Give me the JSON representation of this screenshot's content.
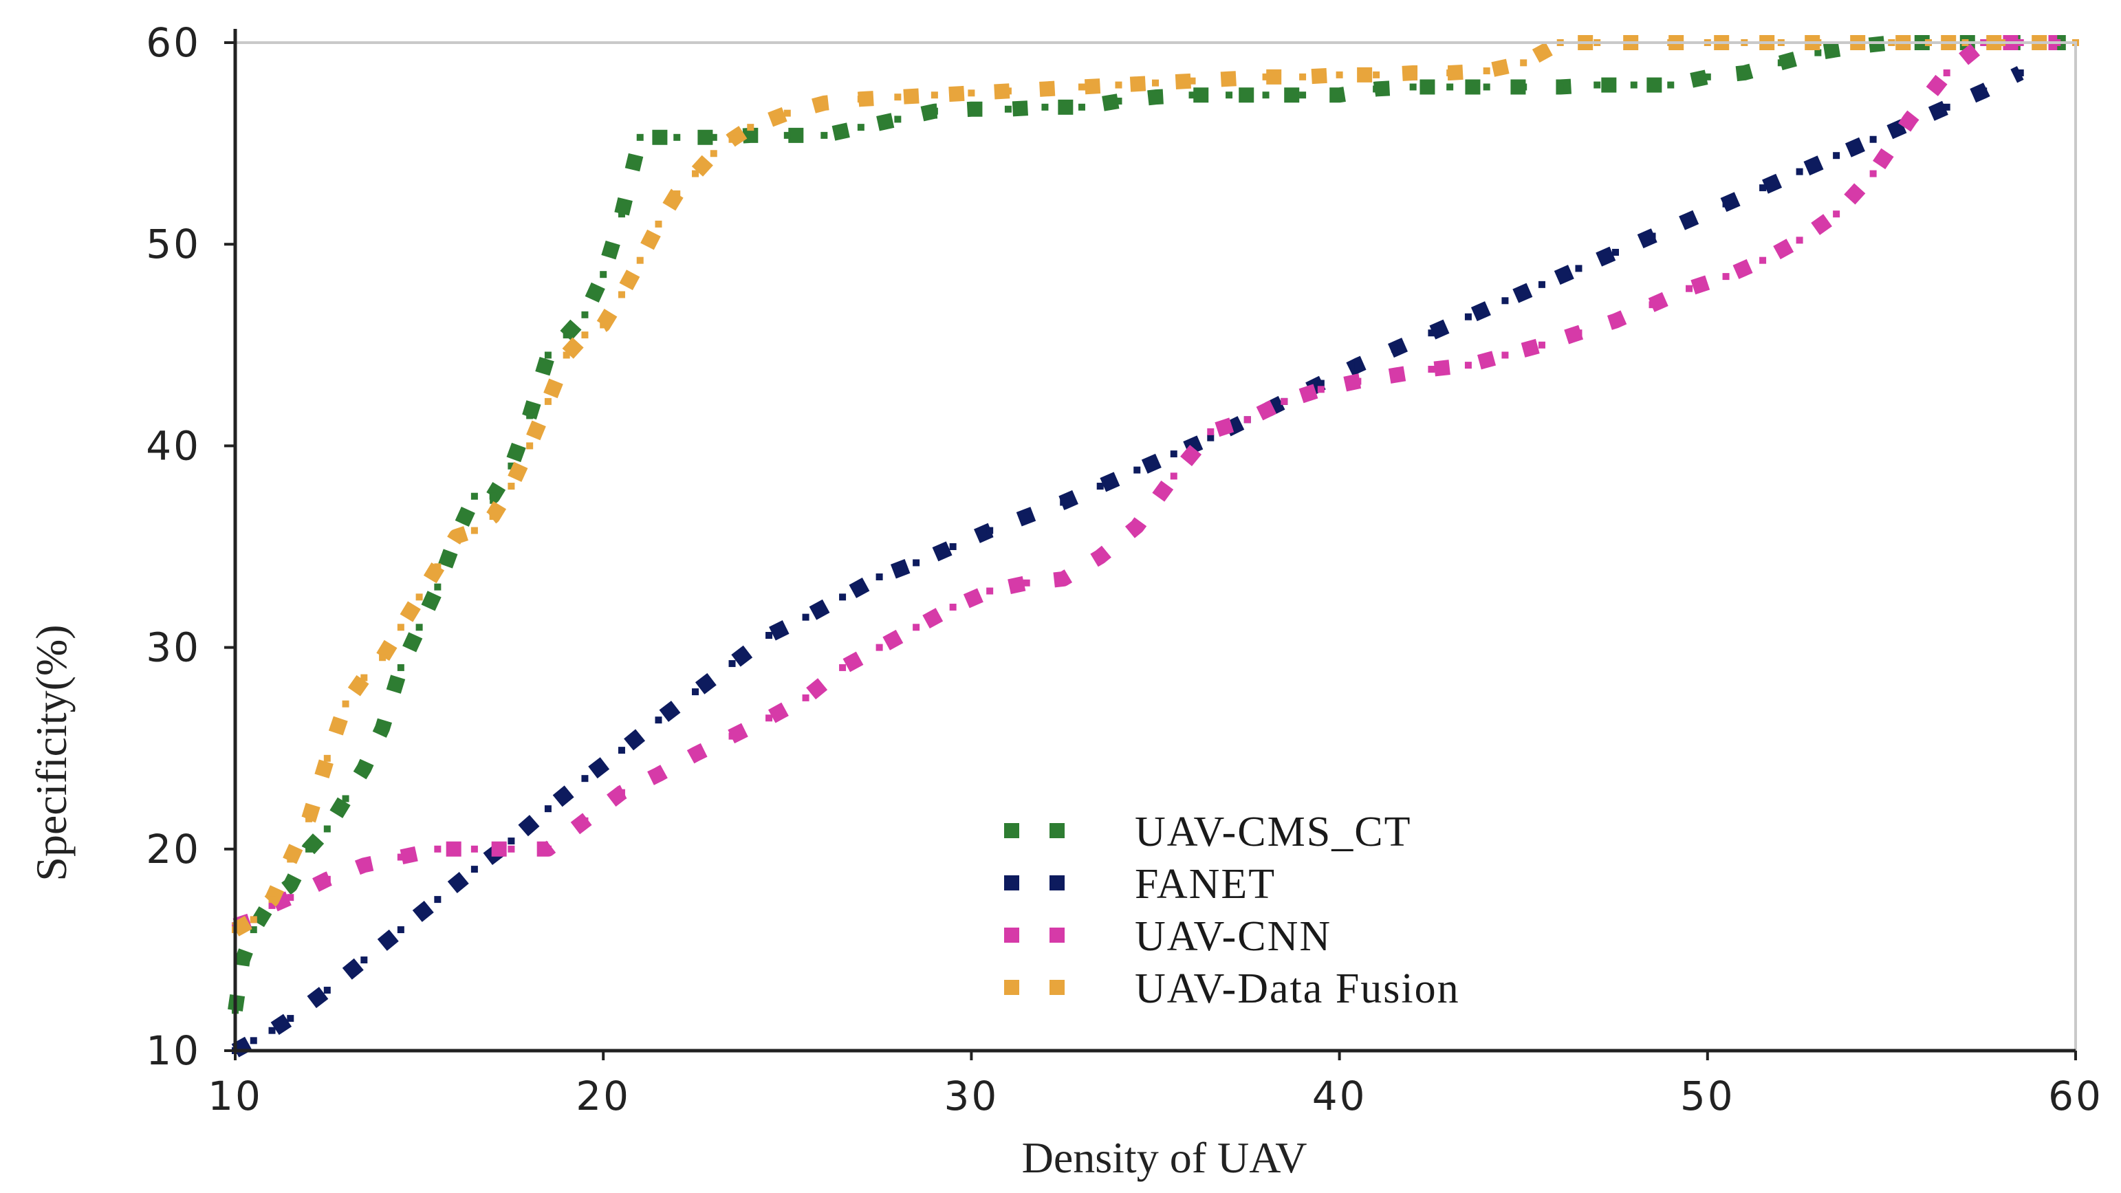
{
  "chart_data": {
    "type": "line",
    "title": "",
    "xlabel": "Density of UAV",
    "ylabel": "Specificity(%)",
    "xlim": [
      10,
      60
    ],
    "ylim": [
      10,
      60
    ],
    "xticks": [
      10,
      20,
      30,
      40,
      50,
      60
    ],
    "yticks": [
      10,
      20,
      30,
      40,
      50,
      60
    ],
    "legend_position": "lower-center",
    "grid": false,
    "series": [
      {
        "name": "UAV-CMS_CT",
        "color": "#2e7d32",
        "x": [
          10,
          10.2,
          10.5,
          11,
          11.5,
          12,
          12.5,
          13,
          13.5,
          14,
          14.5,
          15,
          15.5,
          16,
          16.5,
          17,
          17.5,
          18,
          18.5,
          19,
          19.5,
          20,
          20.5,
          21,
          22,
          23,
          24,
          25,
          26,
          27,
          28,
          29,
          30,
          31,
          32,
          33,
          34,
          35,
          36,
          37,
          38,
          39,
          40,
          41,
          42,
          43,
          44,
          45,
          46,
          47,
          48,
          49,
          50,
          51,
          52,
          53,
          54,
          55,
          56,
          57,
          58,
          59,
          60
        ],
        "values": [
          12,
          14.5,
          16,
          17.5,
          18.2,
          20,
          21,
          22.5,
          24,
          26,
          29,
          31,
          33,
          35.5,
          37.5,
          37.5,
          39,
          41.5,
          44.5,
          45.5,
          46.5,
          48.5,
          51.5,
          55.3,
          55.3,
          55.3,
          55.4,
          55.4,
          55.4,
          55.8,
          56.2,
          56.6,
          56.7,
          56.7,
          56.8,
          56.8,
          57.1,
          57.3,
          57.4,
          57.4,
          57.4,
          57.4,
          57.4,
          57.7,
          57.8,
          57.8,
          57.8,
          57.8,
          57.8,
          57.9,
          57.9,
          57.9,
          58.3,
          58.5,
          59,
          59.5,
          59.8,
          60,
          60,
          60,
          60,
          60,
          60
        ]
      },
      {
        "name": "FANET",
        "color": "#0d1b5e",
        "x": [
          10,
          10.5,
          11,
          11.5,
          12.5,
          13.5,
          14.5,
          15.5,
          16.5,
          17.5,
          18.5,
          19.5,
          20.5,
          21.5,
          22.5,
          23.5,
          24.5,
          25.5,
          26.5,
          27.5,
          28.5,
          29.5,
          30.5,
          31.5,
          32.5,
          33.5,
          34.5,
          35.5,
          36.5,
          37.5,
          38.5,
          39.5,
          40.5,
          41.5,
          42.5,
          43.5,
          44.5,
          45.5,
          46.5,
          47.5,
          48.5,
          49.5,
          50.5,
          51.5,
          52.5,
          53.5,
          54.5,
          55.5,
          56.5,
          57.5,
          58.5
        ],
        "values": [
          10,
          10.5,
          11,
          11.6,
          13,
          14.5,
          16,
          17.5,
          19,
          20.4,
          22,
          23.5,
          24.9,
          26.4,
          27.8,
          29.2,
          30.6,
          31.5,
          32.5,
          33.5,
          34.2,
          35,
          35.8,
          36.5,
          37.2,
          38,
          38.8,
          39.6,
          40.4,
          41.3,
          42.2,
          43.1,
          44,
          44.8,
          45.6,
          46.4,
          47.2,
          48,
          48.8,
          49.6,
          50.4,
          51.2,
          52,
          52.8,
          53.6,
          54.4,
          55.2,
          56,
          56.8,
          57.6,
          58.5
        ]
      },
      {
        "name": "UAV-CNN",
        "color": "#d63aa8",
        "x": [
          10,
          10.5,
          11,
          11.5,
          12.5,
          13.5,
          14.5,
          15.5,
          16.5,
          17.5,
          18.5,
          19.5,
          20.5,
          21.5,
          22.5,
          23.5,
          24.5,
          25.5,
          26.5,
          27.5,
          28.5,
          29.5,
          30.5,
          31.5,
          32.5,
          33.5,
          34.5,
          35.5,
          36.5,
          37.5,
          38.5,
          39.5,
          40.5,
          41.5,
          42.5,
          43.5,
          44.5,
          45.5,
          46.5,
          47.5,
          48.5,
          49.5,
          50.5,
          51.5,
          52.5,
          53.5,
          54.5,
          55.5,
          56.5,
          57.5,
          58.5,
          59.5
        ],
        "values": [
          16.2,
          16.5,
          17.2,
          17.6,
          18.5,
          19.2,
          19.6,
          20,
          20,
          20,
          20,
          21.4,
          22.8,
          23.7,
          24.7,
          25.6,
          26.5,
          27.5,
          29,
          30,
          31,
          32,
          32.8,
          33.2,
          33.4,
          34.5,
          36,
          38.5,
          40.7,
          41.3,
          42.2,
          42.8,
          43.2,
          43.5,
          43.8,
          44,
          44.5,
          45,
          45.6,
          46.2,
          47,
          47.8,
          48.4,
          49.2,
          50.2,
          51.5,
          53.5,
          56.2,
          58.5,
          60,
          60,
          60
        ]
      },
      {
        "name": "UAV-Data Fusion",
        "color": "#e8a53c",
        "x": [
          10,
          10.5,
          11,
          11.5,
          12,
          12.5,
          13,
          13.5,
          14,
          14.5,
          15,
          15.5,
          16,
          16.5,
          17,
          17.5,
          18,
          18.5,
          19,
          19.5,
          20,
          20.5,
          21,
          21.5,
          22,
          22.5,
          23,
          23.5,
          24,
          25,
          26,
          27,
          28,
          29,
          30,
          31,
          32,
          33,
          34,
          35,
          36,
          37,
          38,
          39,
          40,
          41,
          42,
          43,
          44,
          45,
          46,
          47,
          48,
          49,
          50,
          51,
          52,
          53,
          54,
          55,
          56,
          57,
          58,
          59,
          60
        ],
        "values": [
          16,
          16.5,
          17.5,
          19.5,
          21.5,
          24.5,
          27.2,
          28.5,
          29.5,
          31,
          32.5,
          34,
          35.5,
          35.8,
          36.5,
          38,
          40,
          42.2,
          44.5,
          45.5,
          46,
          47.5,
          49.2,
          51,
          52.5,
          53.5,
          54.5,
          55.2,
          55.8,
          56.5,
          57,
          57.2,
          57.3,
          57.4,
          57.5,
          57.6,
          57.7,
          57.8,
          57.9,
          58,
          58.1,
          58.2,
          58.3,
          58.3,
          58.4,
          58.4,
          58.5,
          58.5,
          58.6,
          59,
          60,
          60,
          60,
          60,
          60,
          60,
          60,
          60,
          60,
          60,
          60,
          60,
          60,
          60,
          60
        ]
      }
    ]
  }
}
